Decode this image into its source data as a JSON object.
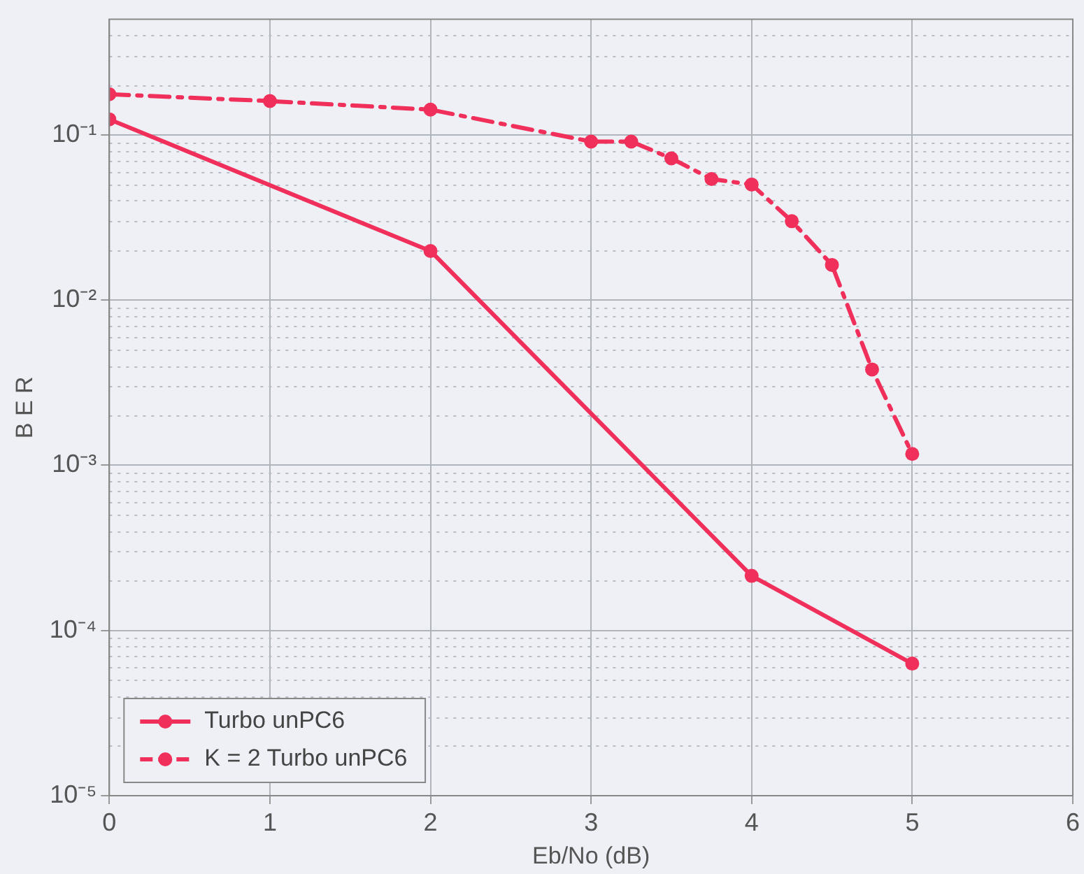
{
  "chart_data": {
    "type": "line",
    "xlabel": "Eb/No (dB)",
    "ylabel": "B E R",
    "log": "y",
    "grid": true,
    "legend": "bottom left",
    "marker": "circle",
    "xlim": [
      0,
      6
    ],
    "xticks": [
      0,
      1,
      2,
      3,
      4,
      5,
      6
    ],
    "ylim": [
      1e-05,
      0.5
    ],
    "yticks": [
      {
        "value": 1e-05,
        "label": "10⁻⁵"
      },
      {
        "value": 0.0001,
        "label": "10⁻⁴"
      },
      {
        "value": 0.001,
        "label": "10⁻³"
      },
      {
        "value": 0.01,
        "label": "10⁻²"
      },
      {
        "value": 0.1,
        "label": "10⁻¹"
      }
    ],
    "series": [
      {
        "name": "Turbo unPC6",
        "color": "#f0305a",
        "line_style": "solid",
        "x": [
          0,
          2,
          4,
          5
        ],
        "values": [
          0.124,
          0.0198,
          0.000214,
          6.3e-05
        ]
      },
      {
        "name": "K = 2 Turbo unPC6",
        "color": "#f0305a",
        "line_style": "dashed",
        "x": [
          0,
          1,
          2,
          3,
          3.25,
          3.5,
          3.75,
          4,
          4.25,
          4.5,
          4.75,
          5
        ],
        "values": [
          0.176,
          0.16,
          0.142,
          0.091,
          0.091,
          0.072,
          0.054,
          0.05,
          0.03,
          0.0163,
          0.0038,
          0.00117
        ]
      }
    ]
  }
}
